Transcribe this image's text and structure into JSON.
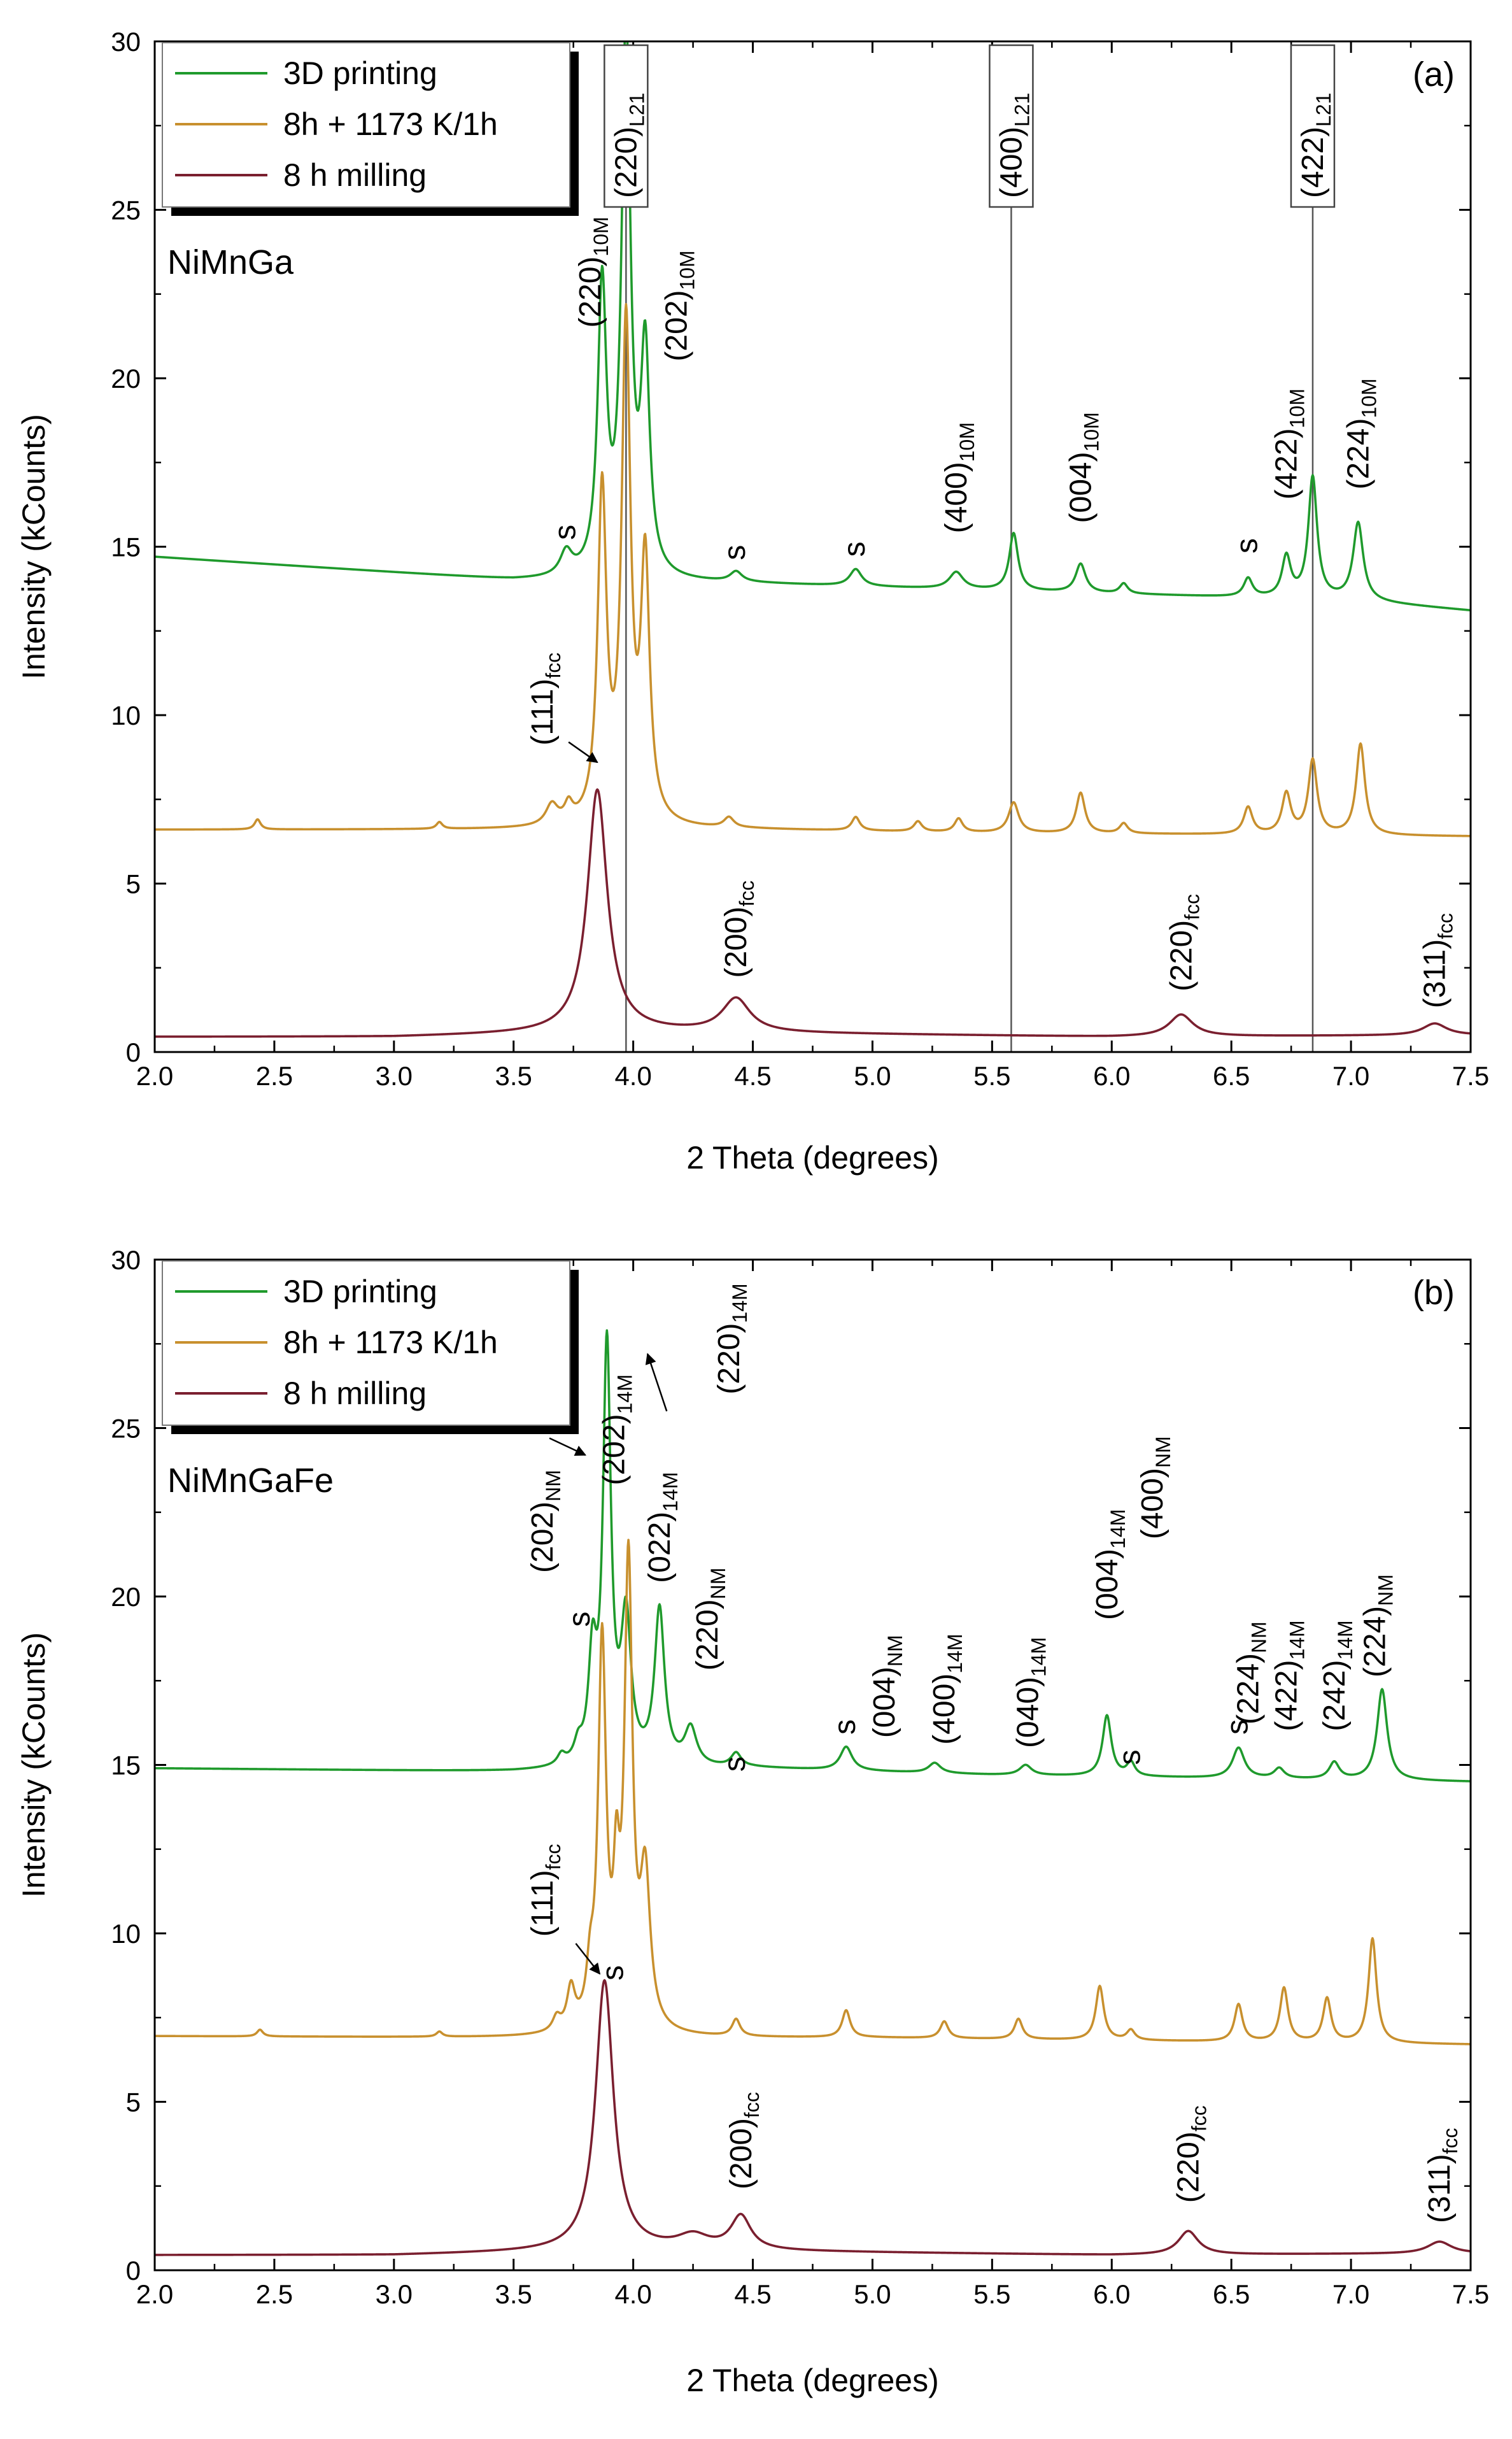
{
  "chart_data": [
    {
      "type": "line",
      "panel": "(a)",
      "sample": "NiMnGa",
      "xlabel": "2 Theta (degrees)",
      "ylabel": "Intensity (kCounts)",
      "xlim": [
        2.0,
        7.5
      ],
      "ylim": [
        0,
        30
      ],
      "xticks": [
        "2.0",
        "2.5",
        "3.0",
        "3.5",
        "4.0",
        "4.5",
        "5.0",
        "5.5",
        "6.0",
        "6.5",
        "7.0",
        "7.5"
      ],
      "yticks": [
        "0",
        "5",
        "10",
        "15",
        "20",
        "25",
        "30"
      ],
      "colors": {
        "printing": "#1f9a2c",
        "annealed": "#c8902e",
        "milled": "#7a1f2f"
      },
      "legend": [
        "3D printing",
        "8h + 1173 K/1h",
        "8 h milling"
      ],
      "series": [
        {
          "name": "3D printing",
          "key": "printing",
          "baseline": [
            [
              2.0,
              14.7
            ],
            [
              3.5,
              14.0
            ],
            [
              4.5,
              13.9
            ],
            [
              5.5,
              13.7
            ],
            [
              7.0,
              13.4
            ],
            [
              7.5,
              13.1
            ]
          ],
          "peaks": [
            [
              3.72,
              0.7,
              0.03
            ],
            [
              3.87,
              8.5,
              0.022
            ],
            [
              3.97,
              16.2,
              0.022
            ],
            [
              4.05,
              6.5,
              0.022
            ],
            [
              4.43,
              0.3,
              0.03
            ],
            [
              4.93,
              0.5,
              0.03
            ],
            [
              5.35,
              0.5,
              0.035
            ],
            [
              5.59,
              1.7,
              0.022
            ],
            [
              5.87,
              0.85,
              0.025
            ],
            [
              6.05,
              0.3,
              0.02
            ],
            [
              6.57,
              0.55,
              0.022
            ],
            [
              6.73,
              1.2,
              0.022
            ],
            [
              6.84,
              3.6,
              0.022
            ],
            [
              7.03,
              2.3,
              0.025
            ]
          ]
        },
        {
          "name": "8h + 1173 K/1h",
          "key": "annealed",
          "baseline": [
            [
              2.0,
              6.6
            ],
            [
              3.5,
              6.6
            ],
            [
              4.5,
              6.6
            ],
            [
              5.5,
              6.5
            ],
            [
              7.5,
              6.4
            ]
          ],
          "peaks": [
            [
              2.43,
              0.3,
              0.015
            ],
            [
              3.19,
              0.2,
              0.015
            ],
            [
              3.66,
              0.6,
              0.03
            ],
            [
              3.73,
              0.5,
              0.02
            ],
            [
              3.87,
              9.8,
              0.022
            ],
            [
              3.97,
              14.6,
              0.022
            ],
            [
              4.05,
              7.6,
              0.022
            ],
            [
              4.4,
              0.3,
              0.025
            ],
            [
              4.93,
              0.4,
              0.02
            ],
            [
              5.19,
              0.3,
              0.02
            ],
            [
              5.36,
              0.4,
              0.02
            ],
            [
              5.59,
              0.9,
              0.025
            ],
            [
              5.87,
              1.2,
              0.022
            ],
            [
              6.05,
              0.3,
              0.02
            ],
            [
              6.57,
              0.8,
              0.022
            ],
            [
              6.73,
              1.2,
              0.022
            ],
            [
              6.84,
              2.2,
              0.022
            ],
            [
              7.04,
              2.7,
              0.022
            ]
          ]
        },
        {
          "name": "8 h milling",
          "key": "milled",
          "baseline": [
            [
              2.0,
              0.45
            ],
            [
              3.0,
              0.45
            ],
            [
              4.0,
              0.6
            ],
            [
              6.0,
              0.45
            ],
            [
              7.5,
              0.5
            ]
          ],
          "peaks": [
            [
              3.85,
              7.2,
              0.05
            ],
            [
              4.43,
              1.0,
              0.07
            ],
            [
              6.29,
              0.65,
              0.06
            ],
            [
              7.35,
              0.35,
              0.06
            ]
          ]
        }
      ],
      "annotations": [
        {
          "main": "(220)",
          "sub": "10M",
          "x": 3.82,
          "y": 21.5
        },
        {
          "main": "(202)",
          "sub": "10M",
          "x": 4.18,
          "y": 20.5
        },
        {
          "main": "(400)",
          "sub": "10M",
          "x": 5.35,
          "y": 15.4
        },
        {
          "main": "(004)",
          "sub": "10M",
          "x": 5.87,
          "y": 15.7
        },
        {
          "main": "(422)",
          "sub": "10M",
          "x": 6.73,
          "y": 16.4
        },
        {
          "main": "(224)",
          "sub": "10M",
          "x": 7.03,
          "y": 16.7
        },
        {
          "main": "(111)",
          "sub": "fcc",
          "x": 3.62,
          "y": 9.1
        },
        {
          "main": "(200)",
          "sub": "fcc",
          "x": 4.43,
          "y": 2.2
        },
        {
          "main": "(220)",
          "sub": "fcc",
          "x": 6.29,
          "y": 1.8
        },
        {
          "main": "(311)",
          "sub": "fcc",
          "x": 7.35,
          "y": 1.3
        }
      ],
      "boxed_annotations": [
        {
          "main": "(220)",
          "sub": "L21",
          "x": 3.97
        },
        {
          "main": "(400)",
          "sub": "L21",
          "x": 5.58
        },
        {
          "main": "(422)",
          "sub": "L21",
          "x": 6.84
        }
      ],
      "s_marks": [
        [
          3.72,
          15.2
        ],
        [
          4.43,
          14.6
        ],
        [
          4.93,
          14.7
        ],
        [
          6.57,
          14.8
        ]
      ],
      "arrows": [
        [
          3.73,
          9.2,
          3.85,
          8.6
        ]
      ]
    },
    {
      "type": "line",
      "panel": "(b)",
      "sample": "NiMnGaFe",
      "xlabel": "2 Theta (degrees)",
      "ylabel": "Intensity (kCounts)",
      "xlim": [
        2.0,
        7.5
      ],
      "ylim": [
        0,
        30
      ],
      "xticks": [
        "2.0",
        "2.5",
        "3.0",
        "3.5",
        "4.0",
        "4.5",
        "5.0",
        "5.5",
        "6.0",
        "6.5",
        "7.0",
        "7.5"
      ],
      "yticks": [
        "0",
        "5",
        "10",
        "15",
        "20",
        "25",
        "30"
      ],
      "colors": {
        "printing": "#1f9a2c",
        "annealed": "#c8902e",
        "milled": "#7a1f2f"
      },
      "legend": [
        "3D printing",
        "8h + 1173 K/1h",
        "8 h milling"
      ],
      "series": [
        {
          "name": "3D printing",
          "key": "printing",
          "baseline": [
            [
              2.0,
              14.9
            ],
            [
              3.5,
              14.8
            ],
            [
              4.5,
              14.9
            ],
            [
              5.5,
              14.7
            ],
            [
              7.5,
              14.5
            ]
          ],
          "peaks": [
            [
              3.7,
              0.3,
              0.02
            ],
            [
              3.77,
              0.5,
              0.02
            ],
            [
              3.83,
              3.0,
              0.02
            ],
            [
              3.89,
              12.3,
              0.02
            ],
            [
              3.97,
              4.2,
              0.025
            ],
            [
              4.11,
              4.6,
              0.025
            ],
            [
              4.24,
              1.1,
              0.03
            ],
            [
              4.43,
              0.4,
              0.025
            ],
            [
              4.89,
              0.7,
              0.03
            ],
            [
              5.26,
              0.3,
              0.03
            ],
            [
              5.64,
              0.3,
              0.03
            ],
            [
              5.98,
              1.8,
              0.022
            ],
            [
              6.08,
              0.4,
              0.02
            ],
            [
              6.53,
              0.9,
              0.03
            ],
            [
              6.7,
              0.3,
              0.025
            ],
            [
              6.93,
              0.5,
              0.025
            ],
            [
              7.13,
              2.7,
              0.025
            ]
          ]
        },
        {
          "name": "8h + 1173 K/1h",
          "key": "annealed",
          "baseline": [
            [
              2.0,
              6.95
            ],
            [
              3.5,
              6.9
            ],
            [
              5.0,
              6.9
            ],
            [
              7.5,
              6.7
            ]
          ],
          "peaks": [
            [
              2.44,
              0.2,
              0.015
            ],
            [
              3.19,
              0.15,
              0.015
            ],
            [
              3.68,
              0.4,
              0.02
            ],
            [
              3.74,
              1.2,
              0.02
            ],
            [
              3.82,
              1.3,
              0.018
            ],
            [
              3.87,
              11.4,
              0.02
            ],
            [
              3.93,
              3.5,
              0.015
            ],
            [
              3.98,
              13.6,
              0.02
            ],
            [
              4.05,
              4.4,
              0.025
            ],
            [
              4.43,
              0.5,
              0.02
            ],
            [
              4.89,
              0.8,
              0.02
            ],
            [
              5.3,
              0.5,
              0.02
            ],
            [
              5.61,
              0.6,
              0.02
            ],
            [
              5.95,
              1.6,
              0.02
            ],
            [
              6.08,
              0.3,
              0.02
            ],
            [
              6.53,
              1.1,
              0.02
            ],
            [
              6.72,
              1.6,
              0.02
            ],
            [
              6.9,
              1.3,
              0.02
            ],
            [
              7.09,
              3.1,
              0.02
            ]
          ]
        },
        {
          "name": "8 h milling",
          "key": "milled",
          "baseline": [
            [
              2.0,
              0.45
            ],
            [
              3.0,
              0.45
            ],
            [
              4.0,
              0.6
            ],
            [
              6.0,
              0.45
            ],
            [
              7.5,
              0.5
            ]
          ],
          "peaks": [
            [
              3.88,
              8.0,
              0.045
            ],
            [
              4.25,
              0.4,
              0.08
            ],
            [
              4.45,
              1.0,
              0.05
            ],
            [
              6.32,
              0.7,
              0.05
            ],
            [
              7.37,
              0.35,
              0.06
            ]
          ]
        }
      ],
      "annotations": [
        {
          "main": "(202)",
          "sub": "NM",
          "x": 3.62,
          "y": 20.7
        },
        {
          "main": "(202)",
          "sub": "14M",
          "x": 3.92,
          "y": 23.3
        },
        {
          "main": "(022)",
          "sub": "14M",
          "x": 4.11,
          "y": 20.4
        },
        {
          "main": "(220)",
          "sub": "14M",
          "x": 4.4,
          "y": 26.0
        },
        {
          "main": "(220)",
          "sub": "NM",
          "x": 4.31,
          "y": 17.8
        },
        {
          "main": "(004)",
          "sub": "NM",
          "x": 5.05,
          "y": 15.8
        },
        {
          "main": "(400)",
          "sub": "14M",
          "x": 5.3,
          "y": 15.6
        },
        {
          "main": "(040)",
          "sub": "14M",
          "x": 5.65,
          "y": 15.5
        },
        {
          "main": "(004)",
          "sub": "14M",
          "x": 5.98,
          "y": 19.3
        },
        {
          "main": "(400)",
          "sub": "NM",
          "x": 6.17,
          "y": 21.7
        },
        {
          "main": "(224)",
          "sub": "NM",
          "x": 6.57,
          "y": 16.2
        },
        {
          "main": "(422)",
          "sub": "14M",
          "x": 6.73,
          "y": 16.0
        },
        {
          "main": "(242)",
          "sub": "14M",
          "x": 6.93,
          "y": 16.0
        },
        {
          "main": "(224)",
          "sub": "NM",
          "x": 7.1,
          "y": 17.6
        },
        {
          "main": "(111)",
          "sub": "fcc",
          "x": 3.62,
          "y": 9.9
        },
        {
          "main": "(200)",
          "sub": "fcc",
          "x": 4.45,
          "y": 2.4
        },
        {
          "main": "(220)",
          "sub": "fcc",
          "x": 6.32,
          "y": 2.0
        },
        {
          "main": "(311)",
          "sub": "fcc",
          "x": 7.37,
          "y": 1.4
        }
      ],
      "s_marks": [
        [
          3.78,
          19.1
        ],
        [
          4.43,
          14.8
        ],
        [
          4.89,
          15.9
        ],
        [
          6.08,
          15.0
        ],
        [
          6.53,
          15.9
        ],
        [
          3.92,
          8.6
        ]
      ],
      "arrows": [
        [
          3.65,
          24.7,
          3.8,
          24.2
        ],
        [
          4.14,
          25.5,
          4.06,
          27.2
        ],
        [
          3.76,
          9.7,
          3.86,
          8.8
        ]
      ]
    }
  ]
}
